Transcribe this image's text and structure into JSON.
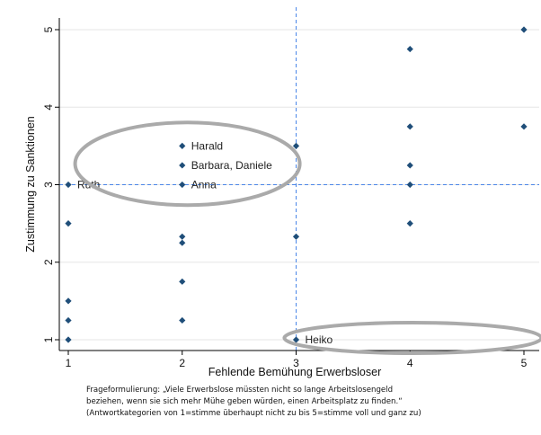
{
  "chart_data": {
    "type": "scatter",
    "xlabel": "Fehlende Bemühung Erwerbsloser",
    "ylabel": "Zustimmung zu Sanktionen",
    "xlim": [
      1,
      5
    ],
    "ylim": [
      1,
      5
    ],
    "x_ticks": [
      "1",
      "2",
      "3",
      "4",
      "5"
    ],
    "y_ticks": [
      "1",
      "2",
      "3",
      "4",
      "5"
    ],
    "grid": true,
    "reference_lines": {
      "x": 3,
      "y": 3
    },
    "marker_color": "#1f4e79",
    "reference_line_color": "#4a86e8",
    "highlight_ellipse_color": "#aaaaaa",
    "points": [
      {
        "x": 1,
        "y": 3.0
      },
      {
        "x": 1,
        "y": 2.5
      },
      {
        "x": 1,
        "y": 1.5
      },
      {
        "x": 1,
        "y": 1.25
      },
      {
        "x": 1,
        "y": 1.0
      },
      {
        "x": 2,
        "y": 3.5
      },
      {
        "x": 2,
        "y": 3.25
      },
      {
        "x": 2,
        "y": 3.0
      },
      {
        "x": 2,
        "y": 2.33
      },
      {
        "x": 2,
        "y": 2.25
      },
      {
        "x": 2,
        "y": 1.75
      },
      {
        "x": 2,
        "y": 1.25
      },
      {
        "x": 3,
        "y": 3.5
      },
      {
        "x": 3,
        "y": 2.33
      },
      {
        "x": 3,
        "y": 1.0
      },
      {
        "x": 4,
        "y": 4.75
      },
      {
        "x": 4,
        "y": 3.75
      },
      {
        "x": 4,
        "y": 3.25
      },
      {
        "x": 4,
        "y": 3.0
      },
      {
        "x": 4,
        "y": 2.5
      },
      {
        "x": 5,
        "y": 5.0
      },
      {
        "x": 5,
        "y": 3.75
      }
    ],
    "annotations": [
      {
        "text": "Harald",
        "x": 2,
        "y": 3.5
      },
      {
        "text": "Barbara, Daniele",
        "x": 2,
        "y": 3.25
      },
      {
        "text": "Anna",
        "x": 2,
        "y": 3.0
      },
      {
        "text": "Ruth",
        "x": 1,
        "y": 3.0
      },
      {
        "text": "Heiko",
        "x": 3,
        "y": 1.0
      }
    ]
  },
  "caption": {
    "line1": "Frageformulierung: „Viele Erwerbslose müssten nicht so lange Arbeitslosengeld",
    "line2": "beziehen, wenn sie sich mehr Mühe geben würden, einen Arbeitsplatz zu finden.“",
    "line3": "(Antwortkategorien von 1=stimme überhaupt nicht zu bis 5=stimme voll und ganz zu)"
  }
}
